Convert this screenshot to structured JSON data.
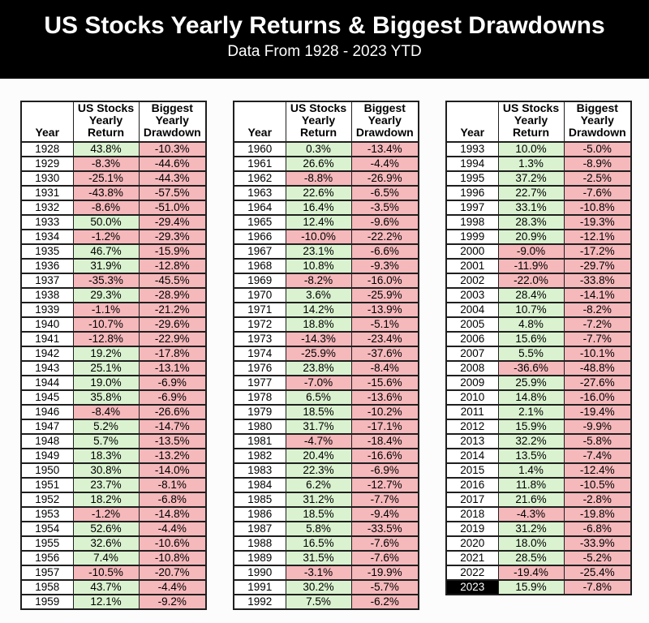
{
  "header": {
    "title": "US Stocks Yearly Returns & Biggest Drawdowns",
    "subtitle": "Data From 1928 - 2023 YTD"
  },
  "colors": {
    "positive_bg": "#daf2d0",
    "negative_bg": "#f5b8bb",
    "header_band_bg": "#000000",
    "border": "#1f1f1f",
    "highlight_cell_bg": "#000000",
    "highlight_cell_text": "#ffffff"
  },
  "chart_data": {
    "type": "table",
    "title": "US Stocks Yearly Returns & Biggest Drawdowns",
    "subtitle": "Data From 1928 - 2023 YTD",
    "columns": [
      "Year",
      "US Stocks Yearly Return",
      "Biggest Yearly Drawdown"
    ],
    "highlight_year": "2023",
    "column_groups": [
      {
        "rows": [
          [
            "1928",
            "43.8%",
            "-10.3%"
          ],
          [
            "1929",
            "-8.3%",
            "-44.6%"
          ],
          [
            "1930",
            "-25.1%",
            "-44.3%"
          ],
          [
            "1931",
            "-43.8%",
            "-57.5%"
          ],
          [
            "1932",
            "-8.6%",
            "-51.0%"
          ],
          [
            "1933",
            "50.0%",
            "-29.4%"
          ],
          [
            "1934",
            "-1.2%",
            "-29.3%"
          ],
          [
            "1935",
            "46.7%",
            "-15.9%"
          ],
          [
            "1936",
            "31.9%",
            "-12.8%"
          ],
          [
            "1937",
            "-35.3%",
            "-45.5%"
          ],
          [
            "1938",
            "29.3%",
            "-28.9%"
          ],
          [
            "1939",
            "-1.1%",
            "-21.2%"
          ],
          [
            "1940",
            "-10.7%",
            "-29.6%"
          ],
          [
            "1941",
            "-12.8%",
            "-22.9%"
          ],
          [
            "1942",
            "19.2%",
            "-17.8%"
          ],
          [
            "1943",
            "25.1%",
            "-13.1%"
          ],
          [
            "1944",
            "19.0%",
            "-6.9%"
          ],
          [
            "1945",
            "35.8%",
            "-6.9%"
          ],
          [
            "1946",
            "-8.4%",
            "-26.6%"
          ],
          [
            "1947",
            "5.2%",
            "-14.7%"
          ],
          [
            "1948",
            "5.7%",
            "-13.5%"
          ],
          [
            "1949",
            "18.3%",
            "-13.2%"
          ],
          [
            "1950",
            "30.8%",
            "-14.0%"
          ],
          [
            "1951",
            "23.7%",
            "-8.1%"
          ],
          [
            "1952",
            "18.2%",
            "-6.8%"
          ],
          [
            "1953",
            "-1.2%",
            "-14.8%"
          ],
          [
            "1954",
            "52.6%",
            "-4.4%"
          ],
          [
            "1955",
            "32.6%",
            "-10.6%"
          ],
          [
            "1956",
            "7.4%",
            "-10.8%"
          ],
          [
            "1957",
            "-10.5%",
            "-20.7%"
          ],
          [
            "1958",
            "43.7%",
            "-4.4%"
          ],
          [
            "1959",
            "12.1%",
            "-9.2%"
          ]
        ]
      },
      {
        "rows": [
          [
            "1960",
            "0.3%",
            "-13.4%"
          ],
          [
            "1961",
            "26.6%",
            "-4.4%"
          ],
          [
            "1962",
            "-8.8%",
            "-26.9%"
          ],
          [
            "1963",
            "22.6%",
            "-6.5%"
          ],
          [
            "1964",
            "16.4%",
            "-3.5%"
          ],
          [
            "1965",
            "12.4%",
            "-9.6%"
          ],
          [
            "1966",
            "-10.0%",
            "-22.2%"
          ],
          [
            "1967",
            "23.1%",
            "-6.6%"
          ],
          [
            "1968",
            "10.8%",
            "-9.3%"
          ],
          [
            "1969",
            "-8.2%",
            "-16.0%"
          ],
          [
            "1970",
            "3.6%",
            "-25.9%"
          ],
          [
            "1971",
            "14.2%",
            "-13.9%"
          ],
          [
            "1972",
            "18.8%",
            "-5.1%"
          ],
          [
            "1973",
            "-14.3%",
            "-23.4%"
          ],
          [
            "1974",
            "-25.9%",
            "-37.6%"
          ],
          [
            "1976",
            "23.8%",
            "-8.4%"
          ],
          [
            "1977",
            "-7.0%",
            "-15.6%"
          ],
          [
            "1978",
            "6.5%",
            "-13.6%"
          ],
          [
            "1979",
            "18.5%",
            "-10.2%"
          ],
          [
            "1980",
            "31.7%",
            "-17.1%"
          ],
          [
            "1981",
            "-4.7%",
            "-18.4%"
          ],
          [
            "1982",
            "20.4%",
            "-16.6%"
          ],
          [
            "1983",
            "22.3%",
            "-6.9%"
          ],
          [
            "1984",
            "6.2%",
            "-12.7%"
          ],
          [
            "1985",
            "31.2%",
            "-7.7%"
          ],
          [
            "1986",
            "18.5%",
            "-9.4%"
          ],
          [
            "1987",
            "5.8%",
            "-33.5%"
          ],
          [
            "1988",
            "16.5%",
            "-7.6%"
          ],
          [
            "1989",
            "31.5%",
            "-7.6%"
          ],
          [
            "1990",
            "-3.1%",
            "-19.9%"
          ],
          [
            "1991",
            "30.2%",
            "-5.7%"
          ],
          [
            "1992",
            "7.5%",
            "-6.2%"
          ]
        ]
      },
      {
        "rows": [
          [
            "1993",
            "10.0%",
            "-5.0%"
          ],
          [
            "1994",
            "1.3%",
            "-8.9%"
          ],
          [
            "1995",
            "37.2%",
            "-2.5%"
          ],
          [
            "1996",
            "22.7%",
            "-7.6%"
          ],
          [
            "1997",
            "33.1%",
            "-10.8%"
          ],
          [
            "1998",
            "28.3%",
            "-19.3%"
          ],
          [
            "1999",
            "20.9%",
            "-12.1%"
          ],
          [
            "2000",
            "-9.0%",
            "-17.2%"
          ],
          [
            "2001",
            "-11.9%",
            "-29.7%"
          ],
          [
            "2002",
            "-22.0%",
            "-33.8%"
          ],
          [
            "2003",
            "28.4%",
            "-14.1%"
          ],
          [
            "2004",
            "10.7%",
            "-8.2%"
          ],
          [
            "2005",
            "4.8%",
            "-7.2%"
          ],
          [
            "2006",
            "15.6%",
            "-7.7%"
          ],
          [
            "2007",
            "5.5%",
            "-10.1%"
          ],
          [
            "2008",
            "-36.6%",
            "-48.8%"
          ],
          [
            "2009",
            "25.9%",
            "-27.6%"
          ],
          [
            "2010",
            "14.8%",
            "-16.0%"
          ],
          [
            "2011",
            "2.1%",
            "-19.4%"
          ],
          [
            "2012",
            "15.9%",
            "-9.9%"
          ],
          [
            "2013",
            "32.2%",
            "-5.8%"
          ],
          [
            "2014",
            "13.5%",
            "-7.4%"
          ],
          [
            "2015",
            "1.4%",
            "-12.4%"
          ],
          [
            "2016",
            "11.8%",
            "-10.5%"
          ],
          [
            "2017",
            "21.6%",
            "-2.8%"
          ],
          [
            "2018",
            "-4.3%",
            "-19.8%"
          ],
          [
            "2019",
            "31.2%",
            "-6.8%"
          ],
          [
            "2020",
            "18.0%",
            "-33.9%"
          ],
          [
            "2021",
            "28.5%",
            "-5.2%"
          ],
          [
            "2022",
            "-19.4%",
            "-25.4%"
          ],
          [
            "2023",
            "15.9%",
            "-7.8%"
          ]
        ]
      }
    ]
  }
}
